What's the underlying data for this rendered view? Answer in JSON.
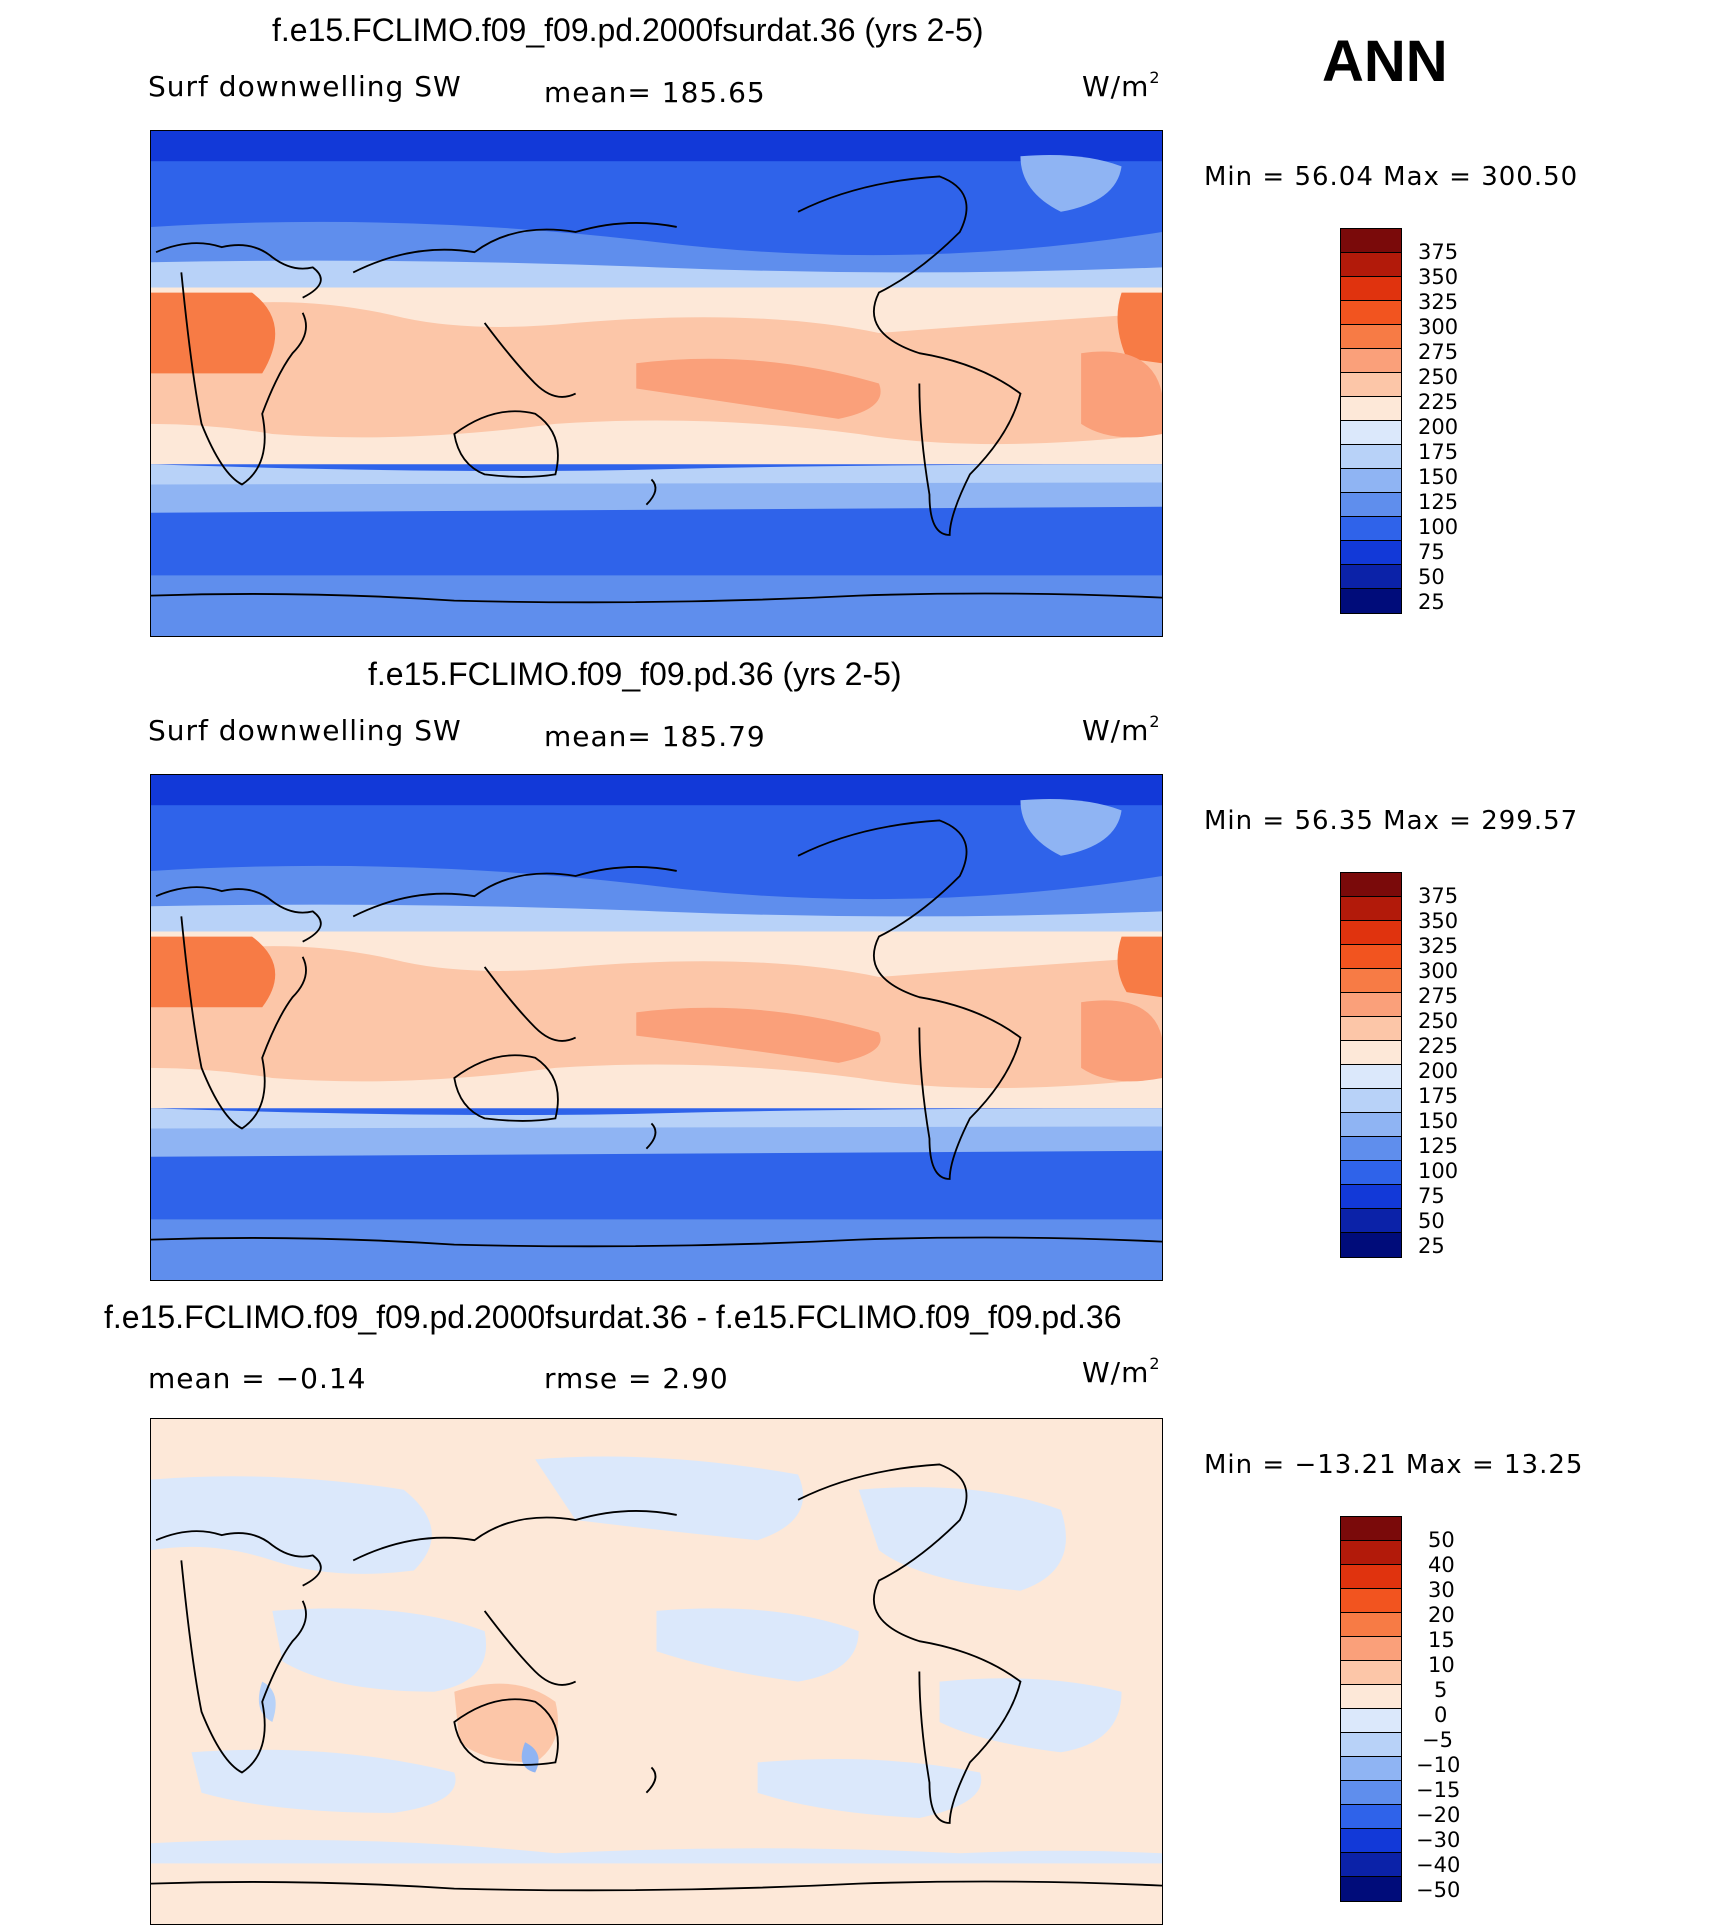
{
  "season": "ANN",
  "panels": [
    {
      "title": "f.e15.FCLIMO.f09_f09.pd.2000fsurdat.36 (yrs 2-5)",
      "variable": "Surf  downwelling  SW",
      "stat": "mean=  185.65",
      "units_base": "W/m",
      "units_exp": "2",
      "range": "Min  =    56.04  Max  =  300.50",
      "colorbar_labels": [
        "375",
        "350",
        "325",
        "300",
        "275",
        "250",
        "225",
        "200",
        "175",
        "150",
        "125",
        "100",
        "75",
        "50",
        "25"
      ]
    },
    {
      "title": "f.e15.FCLIMO.f09_f09.pd.36 (yrs 2-5)",
      "variable": "Surf  downwelling  SW",
      "stat": "mean=  185.79",
      "units_base": "W/m",
      "units_exp": "2",
      "range": "Min  =    56.35  Max  =  299.57",
      "colorbar_labels": [
        "375",
        "350",
        "325",
        "300",
        "275",
        "250",
        "225",
        "200",
        "175",
        "150",
        "125",
        "100",
        "75",
        "50",
        "25"
      ]
    },
    {
      "title": "f.e15.FCLIMO.f09_f09.pd.2000fsurdat.36 - f.e15.FCLIMO.f09_f09.pd.36",
      "mean": "mean  =    −0.14",
      "rmse": "rmse  =      2.90",
      "units_base": "W/m",
      "units_exp": "2",
      "range": "Min  =  −13.21  Max  =    13.25",
      "colorbar_labels": [
        "50",
        "40",
        "30",
        "20",
        "15",
        "10",
        "5",
        "0",
        "−5",
        "−10",
        "−15",
        "−20",
        "−30",
        "−40",
        "−50"
      ]
    }
  ],
  "colors": {
    "scale": [
      "#7a0a0a",
      "#b21a0a",
      "#e0330e",
      "#f2541f",
      "#f77b45",
      "#faa07a",
      "#fcc6a8",
      "#fde8d8",
      "#dbe8fb",
      "#b8d2f8",
      "#8fb4f3",
      "#5f8eed",
      "#2f63ea",
      "#1239d8",
      "#0b22a8",
      "#000c7a"
    ],
    "ocean_low": "#2f63ea",
    "coast": "#000000"
  }
}
